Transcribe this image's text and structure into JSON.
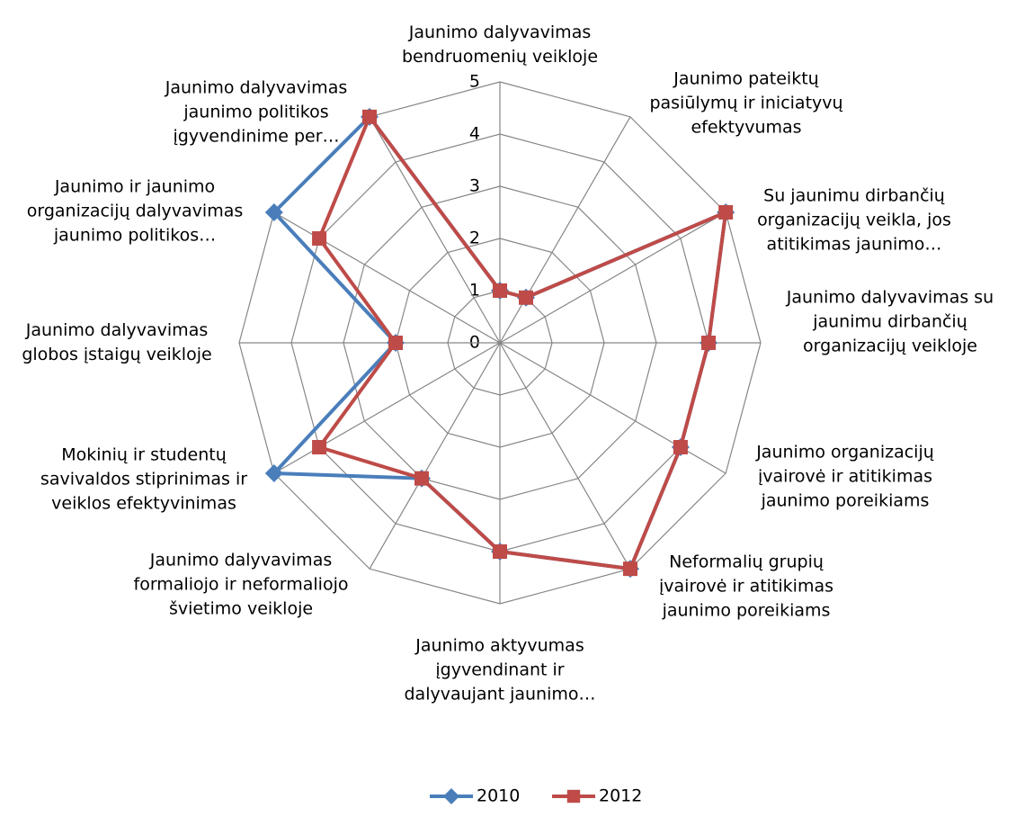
{
  "chart_data": {
    "type": "radar",
    "categories": [
      "Jaunimo dalyvavimas bendruomenių veikloje",
      "Jaunimo pateiktų pasiūlymų ir iniciatyvų efektyvumas",
      "Su jaunimu dirbančių organizacijų veikla, jos atitikimas jaunimo…",
      "Jaunimo dalyvavimas su jaunimu dirbančių organizacijų veikloje",
      "Jaunimo organizacijų įvairovė ir atitikimas jaunimo poreikiams",
      "Neformalių grupių įvairovė ir atitikimas jaunimo poreikiams",
      "Jaunimo aktyvumas įgyvendinant ir dalyvaujant jaunimo…",
      "Jaunimo dalyvavimas formaliojo ir neformaliojo švietimo veikloje",
      "Mokinių ir studentų savivaldos stiprinimas ir veiklos efektyvinimas",
      "Jaunimo dalyvavimas globos įstaigų veikloje",
      "Jaunimo ir jaunimo organizacijų dalyvavimas jaunimo politikos…",
      "Jaunimo dalyvavimas jaunimo politikos įgyvendinime per…"
    ],
    "series": [
      {
        "name": "2010",
        "color": "#4a7ebb",
        "marker": "diamond",
        "values": [
          1,
          1,
          5,
          4,
          4,
          5,
          4,
          3,
          5,
          2,
          5,
          5
        ]
      },
      {
        "name": "2012",
        "color": "#be4b48",
        "marker": "square",
        "values": [
          1,
          1,
          5,
          4,
          4,
          5,
          4,
          3,
          4,
          2,
          4,
          5
        ]
      }
    ],
    "ylim": [
      0,
      5
    ],
    "yticks": [
      0,
      1,
      2,
      3,
      4,
      5
    ],
    "grid": true,
    "legend": "bottom"
  }
}
